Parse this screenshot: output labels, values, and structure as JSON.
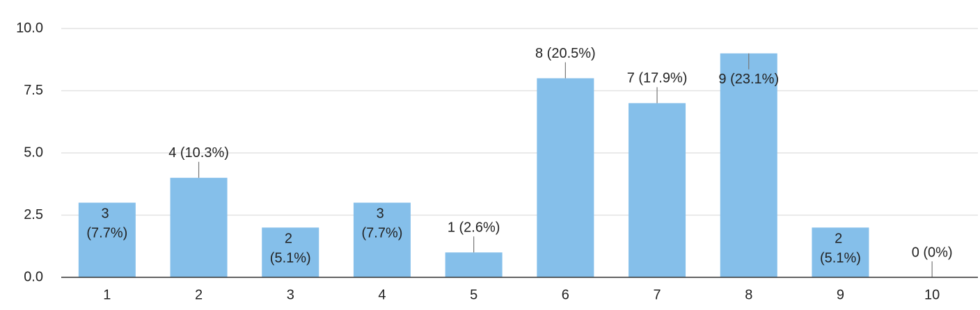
{
  "chart_data": {
    "type": "bar",
    "categories": [
      "1",
      "2",
      "3",
      "4",
      "5",
      "6",
      "7",
      "8",
      "9",
      "10"
    ],
    "values": [
      3,
      4,
      2,
      3,
      1,
      8,
      7,
      9,
      2,
      0
    ],
    "value_labels": [
      "3 (7.7%)",
      "4 (10.3%)",
      "2 (5.1%)",
      "3 (7.7%)",
      "1 (2.6%)",
      "8 (20.5%)",
      "7 (17.9%)",
      "9 (23.1%)",
      "2 (5.1%)",
      "0 (0%)"
    ],
    "color": "#85bfea",
    "ylim": [
      0,
      10
    ],
    "yticks": [
      {
        "value": 0,
        "label": "0.0"
      },
      2.5,
      {
        "value": 5,
        "label": "5.0"
      },
      7.5,
      {
        "value": 10,
        "label": "10.0"
      }
    ],
    "grid": true
  }
}
